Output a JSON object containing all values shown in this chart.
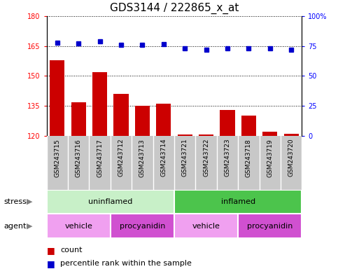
{
  "title": "GDS3144 / 222865_x_at",
  "samples": [
    "GSM243715",
    "GSM243716",
    "GSM243717",
    "GSM243712",
    "GSM243713",
    "GSM243714",
    "GSM243721",
    "GSM243722",
    "GSM243723",
    "GSM243718",
    "GSM243719",
    "GSM243720"
  ],
  "counts": [
    158,
    137,
    152,
    141,
    135,
    136,
    120.5,
    120.5,
    133,
    130,
    122,
    121
  ],
  "percentile_ranks": [
    78,
    77,
    79,
    76,
    76,
    76.5,
    73,
    72,
    73,
    73,
    73,
    72
  ],
  "ylim_left": [
    120,
    180
  ],
  "ylim_right": [
    0,
    100
  ],
  "yticks_left": [
    120,
    135,
    150,
    165,
    180
  ],
  "yticks_right": [
    0,
    25,
    50,
    75,
    100
  ],
  "stress_labels": [
    "uninflamed",
    "inflamed"
  ],
  "agent_labels": [
    "vehicle",
    "procyanidin",
    "vehicle",
    "procyanidin"
  ],
  "uninflamed_color": "#C8F0C8",
  "inflamed_color": "#4CC44C",
  "vehicle_color": "#F0A0F0",
  "procyanidin_color": "#D050D0",
  "bar_color": "#CC0000",
  "dot_color": "#0000CC",
  "tick_bg_color": "#C8C8C8",
  "title_fontsize": 11,
  "tick_fontsize": 7,
  "label_fontsize": 8,
  "legend_fontsize": 8
}
